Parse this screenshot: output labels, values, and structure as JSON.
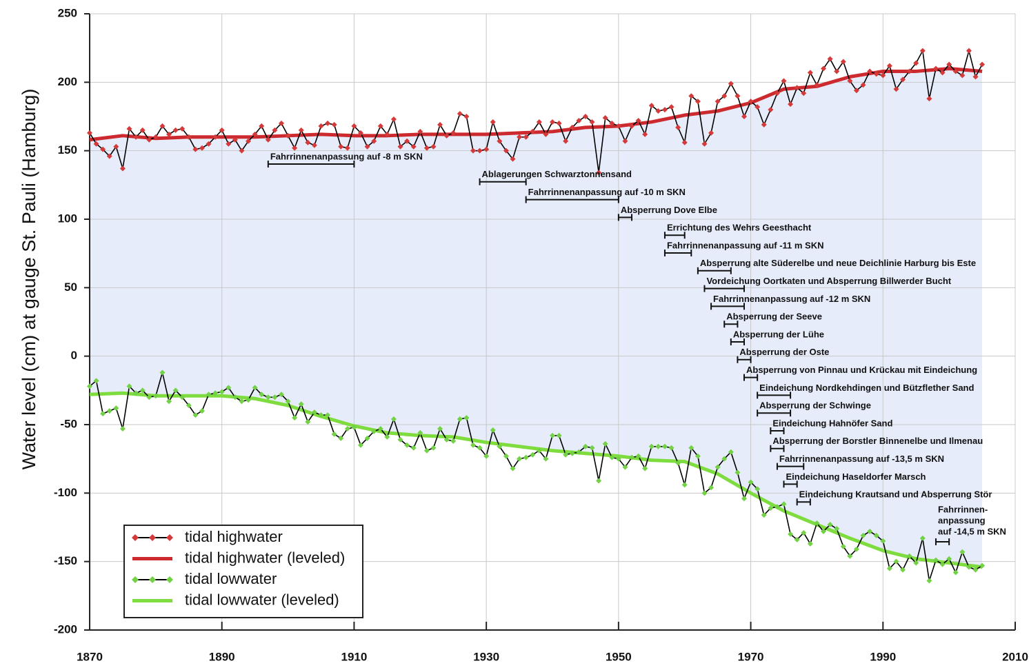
{
  "chart_data": {
    "type": "line",
    "ylabel": "Water level (cm) at gauge St. Pauli (Hamburg)",
    "xlim": [
      1870,
      2010
    ],
    "xticks": [
      1870,
      1890,
      1910,
      1930,
      1950,
      1970,
      1990,
      2010
    ],
    "ylim": [
      -200,
      250
    ],
    "yticks": [
      -200,
      -150,
      -100,
      -50,
      0,
      50,
      100,
      150,
      200,
      250
    ],
    "grid": true,
    "legend": "lower left",
    "fill_color": "#e6ecfa",
    "series": [
      {
        "name": "tidal highwater",
        "style": "markers",
        "color": "#d43a3a",
        "line_color": "#000000",
        "x": [
          1870,
          1871,
          1872,
          1873,
          1874,
          1875,
          1876,
          1877,
          1878,
          1879,
          1880,
          1881,
          1882,
          1883,
          1884,
          1885,
          1886,
          1887,
          1888,
          1889,
          1890,
          1891,
          1892,
          1893,
          1894,
          1895,
          1896,
          1897,
          1898,
          1899,
          1900,
          1901,
          1902,
          1903,
          1904,
          1905,
          1906,
          1907,
          1908,
          1909,
          1910,
          1911,
          1912,
          1913,
          1914,
          1915,
          1916,
          1917,
          1918,
          1919,
          1920,
          1921,
          1922,
          1923,
          1924,
          1925,
          1926,
          1927,
          1928,
          1929,
          1930,
          1931,
          1932,
          1933,
          1934,
          1935,
          1936,
          1937,
          1938,
          1939,
          1940,
          1941,
          1942,
          1943,
          1944,
          1945,
          1946,
          1947,
          1948,
          1949,
          1950,
          1951,
          1952,
          1953,
          1954,
          1955,
          1956,
          1957,
          1958,
          1959,
          1960,
          1961,
          1962,
          1963,
          1964,
          1965,
          1966,
          1967,
          1968,
          1969,
          1970,
          1971,
          1972,
          1973,
          1974,
          1975,
          1976,
          1977,
          1978,
          1979,
          1980,
          1981,
          1982,
          1983,
          1984,
          1985,
          1986,
          1987,
          1988,
          1989,
          1990,
          1991,
          1992,
          1993,
          1994,
          1995,
          1996,
          1997,
          1998,
          1999,
          2000,
          2001,
          2002,
          2003,
          2004,
          2005
        ],
        "values": [
          163,
          155,
          151,
          146,
          153,
          137,
          166,
          160,
          165,
          158,
          160,
          168,
          162,
          165,
          166,
          160,
          151,
          152,
          155,
          160,
          165,
          155,
          158,
          150,
          157,
          162,
          168,
          158,
          165,
          170,
          161,
          152,
          165,
          156,
          154,
          168,
          170,
          169,
          153,
          152,
          168,
          163,
          153,
          157,
          168,
          162,
          173,
          153,
          157,
          153,
          164,
          152,
          153,
          169,
          161,
          163,
          177,
          175,
          150,
          150,
          151,
          171,
          157,
          150,
          144,
          160,
          160,
          164,
          171,
          162,
          171,
          170,
          157,
          167,
          172,
          175,
          171,
          134,
          174,
          170,
          168,
          157,
          168,
          172,
          162,
          183,
          179,
          180,
          182,
          167,
          156,
          190,
          186,
          155,
          163,
          186,
          190,
          199,
          190,
          175,
          186,
          182,
          169,
          180,
          192,
          201,
          184,
          196,
          192,
          207,
          198,
          210,
          217,
          208,
          215,
          201,
          194,
          198,
          208,
          206,
          205,
          212,
          195,
          202,
          208,
          214,
          223,
          188,
          210,
          207,
          213,
          208,
          205,
          223,
          204,
          213
        ]
      },
      {
        "name": "tidal highwater (leveled)",
        "style": "smooth",
        "color": "#cc2a2e",
        "x": [
          1870,
          1875,
          1880,
          1885,
          1890,
          1895,
          1900,
          1905,
          1910,
          1915,
          1920,
          1925,
          1930,
          1935,
          1940,
          1945,
          1950,
          1955,
          1960,
          1965,
          1970,
          1975,
          1980,
          1985,
          1990,
          1995,
          2000,
          2005
        ],
        "values": [
          158,
          161,
          159,
          160,
          160,
          160,
          161,
          162,
          161,
          161,
          162,
          162,
          162,
          163,
          164,
          167,
          168,
          171,
          176,
          179,
          185,
          195,
          197,
          204,
          208,
          208,
          210,
          208
        ]
      },
      {
        "name": "tidal lowwater",
        "style": "markers",
        "color": "#72d145",
        "line_color": "#000000",
        "x": [
          1870,
          1871,
          1872,
          1873,
          1874,
          1875,
          1876,
          1877,
          1878,
          1879,
          1880,
          1881,
          1882,
          1883,
          1884,
          1885,
          1886,
          1887,
          1888,
          1889,
          1890,
          1891,
          1892,
          1893,
          1894,
          1895,
          1896,
          1897,
          1898,
          1899,
          1900,
          1901,
          1902,
          1903,
          1904,
          1905,
          1906,
          1907,
          1908,
          1909,
          1910,
          1911,
          1912,
          1913,
          1914,
          1915,
          1916,
          1917,
          1918,
          1919,
          1920,
          1921,
          1922,
          1923,
          1924,
          1925,
          1926,
          1927,
          1928,
          1929,
          1930,
          1931,
          1932,
          1933,
          1934,
          1935,
          1936,
          1937,
          1938,
          1939,
          1940,
          1941,
          1942,
          1943,
          1944,
          1945,
          1946,
          1947,
          1948,
          1949,
          1950,
          1951,
          1952,
          1953,
          1954,
          1955,
          1956,
          1957,
          1958,
          1959,
          1960,
          1961,
          1962,
          1963,
          1964,
          1965,
          1966,
          1967,
          1968,
          1969,
          1970,
          1971,
          1972,
          1973,
          1974,
          1975,
          1976,
          1977,
          1978,
          1979,
          1980,
          1981,
          1982,
          1983,
          1984,
          1985,
          1986,
          1987,
          1988,
          1989,
          1990,
          1991,
          1992,
          1993,
          1994,
          1995,
          1996,
          1997,
          1998,
          1999,
          2000,
          2001,
          2002,
          2003,
          2004,
          2005
        ],
        "values": [
          -22,
          -18,
          -42,
          -40,
          -38,
          -53,
          -22,
          -27,
          -25,
          -30,
          -29,
          -12,
          -33,
          -25,
          -30,
          -36,
          -43,
          -40,
          -28,
          -27,
          -26,
          -23,
          -30,
          -33,
          -32,
          -23,
          -28,
          -30,
          -30,
          -28,
          -33,
          -45,
          -35,
          -48,
          -41,
          -43,
          -43,
          -57,
          -60,
          -53,
          -52,
          -65,
          -60,
          -55,
          -53,
          -59,
          -46,
          -61,
          -65,
          -67,
          -56,
          -69,
          -67,
          -53,
          -61,
          -62,
          -46,
          -45,
          -65,
          -67,
          -73,
          -54,
          -66,
          -73,
          -82,
          -75,
          -74,
          -72,
          -69,
          -75,
          -58,
          -58,
          -72,
          -71,
          -70,
          -66,
          -67,
          -91,
          -64,
          -74,
          -75,
          -81,
          -74,
          -73,
          -82,
          -66,
          -66,
          -66,
          -67,
          -78,
          -94,
          -67,
          -73,
          -100,
          -96,
          -81,
          -75,
          -70,
          -85,
          -104,
          -92,
          -97,
          -116,
          -111,
          -110,
          -108,
          -130,
          -134,
          -129,
          -137,
          -122,
          -128,
          -123,
          -126,
          -139,
          -146,
          -141,
          -131,
          -128,
          -131,
          -135,
          -155,
          -150,
          -156,
          -146,
          -151,
          -133,
          -164,
          -149,
          -152,
          -148,
          -158,
          -143,
          -154,
          -156,
          -153
        ]
      },
      {
        "name": "tidal lowwater (leveled)",
        "style": "smooth",
        "color": "#7fdc3e",
        "x": [
          1870,
          1875,
          1880,
          1885,
          1890,
          1895,
          1900,
          1905,
          1910,
          1915,
          1920,
          1925,
          1930,
          1935,
          1940,
          1945,
          1950,
          1955,
          1960,
          1965,
          1970,
          1975,
          1980,
          1985,
          1990,
          1995,
          2000,
          2005
        ],
        "values": [
          -28,
          -27,
          -29,
          -29,
          -29,
          -31,
          -36,
          -44,
          -51,
          -56,
          -58,
          -59,
          -63,
          -66,
          -69,
          -71,
          -73,
          -76,
          -77,
          -86,
          -100,
          -113,
          -123,
          -133,
          -142,
          -148,
          -151,
          -154
        ]
      }
    ],
    "annotations": [
      {
        "lines": [
          "Fahrrinnenanpassung auf -8 m SKN"
        ],
        "start": 1897,
        "end": 1910
      },
      {
        "lines": [
          "Ablagerungen Schwarztonnensand"
        ],
        "start": 1929,
        "end": 1936
      },
      {
        "lines": [
          "Fahrrinnenanpassung auf -10 m SKN"
        ],
        "start": 1936,
        "end": 1950
      },
      {
        "lines": [
          "Absperrung Dove Elbe"
        ],
        "start": 1950,
        "end": 1952
      },
      {
        "lines": [
          "Errichtung des Wehrs Geesthacht"
        ],
        "start": 1957,
        "end": 1960
      },
      {
        "lines": [
          "Fahrrinnenanpassung auf -11 m SKN"
        ],
        "start": 1957,
        "end": 1961
      },
      {
        "lines": [
          "Absperrung alte Süderelbe und neue Deichlinie Harburg bis Este"
        ],
        "start": 1962,
        "end": 1967
      },
      {
        "lines": [
          "Vordeichung Oortkaten und Absperrung Billwerder Bucht"
        ],
        "start": 1963,
        "end": 1969
      },
      {
        "lines": [
          "Fahrrinnenanpassung auf -12 m SKN"
        ],
        "start": 1964,
        "end": 1969
      },
      {
        "lines": [
          "Absperrung der Seeve"
        ],
        "start": 1966,
        "end": 1968
      },
      {
        "lines": [
          "Absperrung der Lühe"
        ],
        "start": 1967,
        "end": 1969
      },
      {
        "lines": [
          "Absperrung der Oste"
        ],
        "start": 1968,
        "end": 1970
      },
      {
        "lines": [
          "Absperrung von Pinnau und Krückau mit Eindeichung"
        ],
        "start": 1969,
        "end": 1971
      },
      {
        "lines": [
          "Eindeichung Nordkehdingen und Bützflether Sand"
        ],
        "start": 1971,
        "end": 1976
      },
      {
        "lines": [
          "Absperrung der Schwinge"
        ],
        "start": 1971,
        "end": 1976
      },
      {
        "lines": [
          "Eindeichung Hahnöfer Sand"
        ],
        "start": 1973,
        "end": 1975
      },
      {
        "lines": [
          "Absperrung der Borstler Binnenelbe und Ilmenau"
        ],
        "start": 1973,
        "end": 1975
      },
      {
        "lines": [
          "Fahrrinnenanpassung auf -13,5 m SKN"
        ],
        "start": 1974,
        "end": 1978
      },
      {
        "lines": [
          "Eindeichung Haseldorfer Marsch"
        ],
        "start": 1975,
        "end": 1977
      },
      {
        "lines": [
          "Eindeichung Krautsand und Absperrung Stör"
        ],
        "start": 1977,
        "end": 1979
      },
      {
        "lines": [
          "Fahrrinnen-",
          "anpassung",
          "auf -14,5 m SKN"
        ],
        "start": 1998,
        "end": 2000
      }
    ]
  }
}
